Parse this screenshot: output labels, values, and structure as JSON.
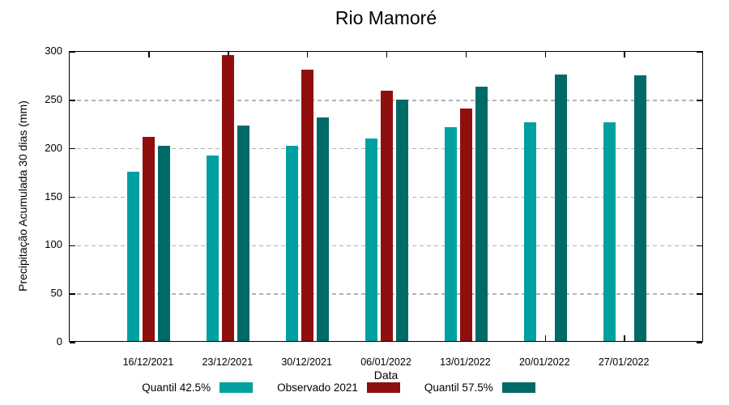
{
  "chart_data": {
    "type": "bar",
    "title": "Rio Mamoré",
    "xlabel": "Data",
    "ylabel": "Precipitação Acumulada 30 dias (mm)",
    "ylim": [
      0,
      300
    ],
    "yticks": [
      0,
      50,
      100,
      150,
      200,
      250,
      300
    ],
    "grid": true,
    "legend_position": "bottom",
    "categories": [
      "16/12/2021",
      "23/12/2021",
      "30/12/2021",
      "06/01/2022",
      "13/01/2022",
      "20/01/2022",
      "27/01/2022"
    ],
    "series": [
      {
        "name": "Quantil 42.5%",
        "color": "#00A0A0",
        "values": [
          175,
          191,
          201,
          209,
          221,
          226,
          226
        ]
      },
      {
        "name": "Observado 2021",
        "color": "#8F0F0F",
        "values": [
          211,
          295,
          280,
          258,
          240,
          null,
          null
        ]
      },
      {
        "name": "Quantil 57.5%",
        "color": "#006A68",
        "values": [
          201,
          222,
          231,
          249,
          262,
          275,
          274
        ]
      }
    ],
    "axis_color": "#000000",
    "gridline_color": "#b4b4b4"
  }
}
